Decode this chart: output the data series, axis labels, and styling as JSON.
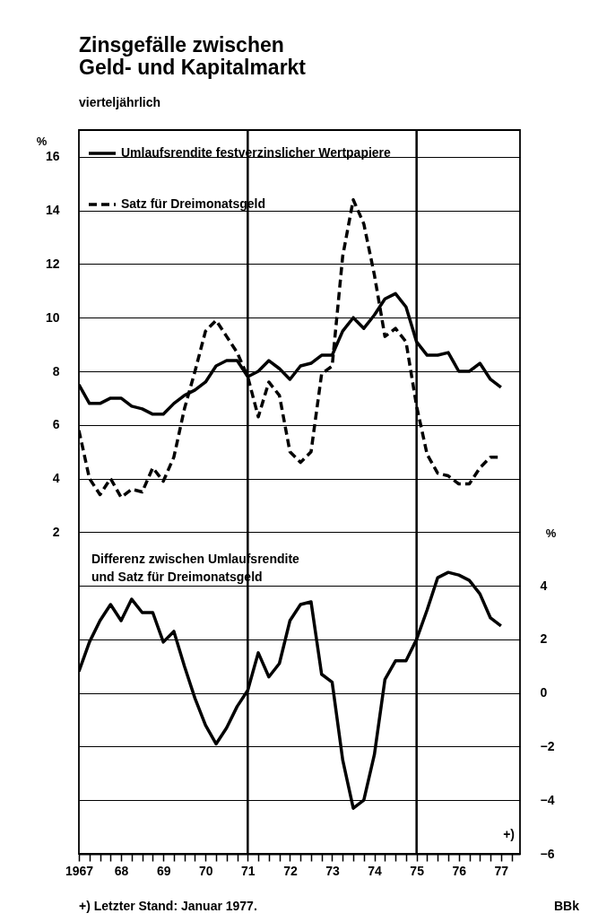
{
  "chart_data": {
    "type": "line",
    "title": "Zinsgefälle zwischen Geld- und Kapitalmarkt",
    "subtitle": "vierteljährlich",
    "ylabel": "%",
    "y2label": "%",
    "x": [
      1967,
      1967.25,
      1967.5,
      1967.75,
      1968,
      1968.25,
      1968.5,
      1968.75,
      1969,
      1969.25,
      1969.5,
      1969.75,
      1970,
      1970.25,
      1970.5,
      1970.75,
      1971,
      1971.25,
      1971.5,
      1971.75,
      1972,
      1972.25,
      1972.5,
      1972.75,
      1973,
      1973.25,
      1973.5,
      1973.75,
      1974,
      1974.25,
      1974.5,
      1974.75,
      1975,
      1975.25,
      1975.5,
      1975.75,
      1976,
      1976.25,
      1976.5,
      1976.75,
      1977
    ],
    "series": [
      {
        "name": "Umlaufsrendite festverzinslicher Wertpapiere",
        "color": "#000000",
        "line_style": "solid",
        "values": [
          7.5,
          6.8,
          6.8,
          7.0,
          7.0,
          6.7,
          6.6,
          6.4,
          6.4,
          6.8,
          7.1,
          7.3,
          7.6,
          8.2,
          8.4,
          8.4,
          7.8,
          8.0,
          8.4,
          8.1,
          7.7,
          8.2,
          8.3,
          8.6,
          8.6,
          9.5,
          10.0,
          9.6,
          10.1,
          10.7,
          10.9,
          10.4,
          9.1,
          8.6,
          8.6,
          8.7,
          8.0,
          8.0,
          8.3,
          7.7,
          7.4
        ]
      },
      {
        "name": "Satz für Dreimonatsgeld",
        "color": "#000000",
        "line_style": "dashed",
        "values": [
          5.8,
          4.0,
          3.4,
          4.0,
          3.3,
          3.6,
          3.5,
          4.4,
          3.9,
          4.8,
          6.6,
          8.0,
          9.5,
          9.9,
          9.3,
          8.7,
          7.8,
          6.3,
          7.6,
          7.1,
          5.0,
          4.6,
          5.0,
          7.9,
          8.2,
          12.3,
          14.4,
          13.5,
          11.6,
          9.3,
          9.6,
          9.1,
          6.7,
          4.9,
          4.2,
          4.1,
          3.8,
          3.8,
          4.4,
          4.8,
          4.8
        ]
      },
      {
        "color": "#000000",
        "axis": "y2",
        "line_style": "solid",
        "values": [
          0.8,
          1.9,
          2.7,
          3.3,
          2.7,
          3.5,
          3.0,
          3.0,
          1.9,
          2.3,
          1.0,
          -0.2,
          -1.2,
          -1.9,
          -1.3,
          -0.5,
          0.1,
          1.5,
          0.6,
          1.1,
          2.7,
          3.3,
          3.4,
          0.7,
          0.4,
          -2.5,
          -4.3,
          -4.0,
          -2.3,
          0.5,
          1.2,
          1.2,
          2.0,
          3.1,
          4.3,
          4.5,
          4.4,
          4.2,
          3.7,
          2.8,
          2.5
        ]
      }
    ],
    "xlim": [
      1967,
      1977.45
    ],
    "xticks": [
      {
        "value": 1967,
        "label": "1967"
      },
      {
        "value": 1967.25,
        "label": null
      },
      {
        "value": 1967.5,
        "label": null
      },
      {
        "value": 1967.75,
        "label": null
      },
      {
        "value": 1968,
        "label": "68"
      },
      {
        "value": 1968.25,
        "label": null
      },
      {
        "value": 1968.5,
        "label": null
      },
      {
        "value": 1968.75,
        "label": null
      },
      {
        "value": 1969,
        "label": "69"
      },
      {
        "value": 1969.25,
        "label": null
      },
      {
        "value": 1969.5,
        "label": null
      },
      {
        "value": 1969.75,
        "label": null
      },
      {
        "value": 1970,
        "label": "70"
      },
      {
        "value": 1970.25,
        "label": null
      },
      {
        "value": 1970.5,
        "label": null
      },
      {
        "value": 1970.75,
        "label": null
      },
      {
        "value": 1971,
        "label": "71"
      },
      {
        "value": 1971.25,
        "label": null
      },
      {
        "value": 1971.5,
        "label": null
      },
      {
        "value": 1971.75,
        "label": null
      },
      {
        "value": 1972,
        "label": "72"
      },
      {
        "value": 1972.25,
        "label": null
      },
      {
        "value": 1972.5,
        "label": null
      },
      {
        "value": 1972.75,
        "label": null
      },
      {
        "value": 1973,
        "label": "73"
      },
      {
        "value": 1973.25,
        "label": null
      },
      {
        "value": 1973.5,
        "label": null
      },
      {
        "value": 1973.75,
        "label": null
      },
      {
        "value": 1974,
        "label": "74"
      },
      {
        "value": 1974.25,
        "label": null
      },
      {
        "value": 1974.5,
        "label": null
      },
      {
        "value": 1974.75,
        "label": null
      },
      {
        "value": 1975,
        "label": "75"
      },
      {
        "value": 1975.25,
        "label": null
      },
      {
        "value": 1975.5,
        "label": null
      },
      {
        "value": 1975.75,
        "label": null
      },
      {
        "value": 1976,
        "label": "76"
      },
      {
        "value": 1976.25,
        "label": null
      },
      {
        "value": 1976.5,
        "label": null
      },
      {
        "value": 1976.75,
        "label": null
      },
      {
        "value": 1977,
        "label": "77"
      },
      {
        "value": 1977.25,
        "label": null
      }
    ],
    "ylim": [
      -10,
      17
    ],
    "yticks": [
      2,
      4,
      6,
      8,
      10,
      12,
      14,
      16
    ],
    "y2lim": [
      -6,
      21
    ],
    "y2ticks": [
      -6,
      -4,
      -2,
      0,
      2,
      4
    ],
    "ref_lines": [
      {
        "axis": "x",
        "value": 1971
      },
      {
        "axis": "x",
        "value": 1975
      }
    ],
    "grid": "y",
    "legend": "top left",
    "annotations": [
      "Differenz zwischen Umlaufsrendite und Satz für Dreimonatsgeld",
      "+)",
      "+) Letzter Stand: Januar 1977.",
      "BBk"
    ]
  }
}
